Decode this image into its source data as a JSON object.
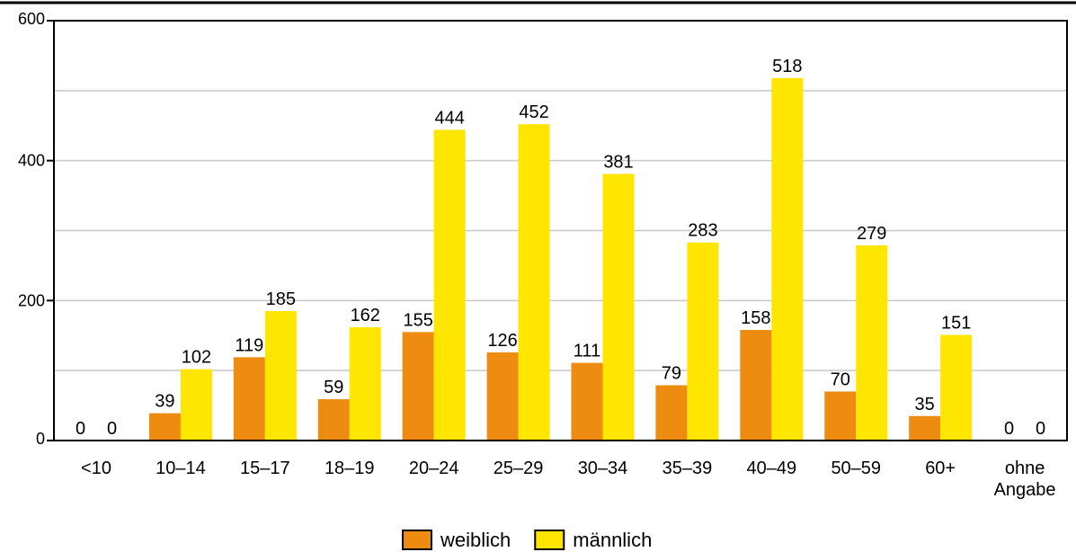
{
  "chart_data": {
    "type": "bar",
    "categories": [
      "<10",
      "10–14",
      "15–17",
      "18–19",
      "20–24",
      "25–29",
      "30–34",
      "35–39",
      "40–49",
      "50–59",
      "60+",
      "ohne Angabe"
    ],
    "series": [
      {
        "name": "weiblich",
        "values": [
          0,
          39,
          119,
          59,
          155,
          126,
          111,
          79,
          158,
          70,
          35,
          0
        ],
        "color": "#ee8b11"
      },
      {
        "name": "männlich",
        "values": [
          0,
          102,
          185,
          162,
          444,
          452,
          381,
          283,
          518,
          279,
          151,
          0
        ],
        "color": "#ffe600"
      }
    ],
    "ylim": [
      0,
      600
    ],
    "yticks": [
      0,
      200,
      400,
      600
    ],
    "grid_lines": [
      100,
      200,
      300,
      400,
      500
    ],
    "grid": true,
    "legend_position": "bottom-center",
    "title": "",
    "xlabel": "",
    "ylabel": ""
  }
}
